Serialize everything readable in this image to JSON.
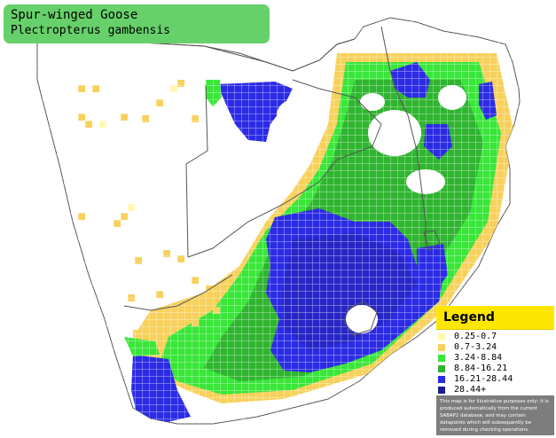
{
  "title": {
    "common_name": "Spur-winged Goose",
    "scientific_name": "Plectropterus gambensis"
  },
  "legend": {
    "heading": "Legend",
    "items": [
      {
        "label": "0.25-0.7",
        "color": "#fff8b0"
      },
      {
        "label": "0.7-3.24",
        "color": "#f7d15c"
      },
      {
        "label": "3.24-8.84",
        "color": "#39e639"
      },
      {
        "label": "8.84-16.21",
        "color": "#2fb52f"
      },
      {
        "label": "16.21-28.44",
        "color": "#2b2be6"
      },
      {
        "label": "28.44+",
        "color": "#1c1c8c"
      }
    ],
    "note": "This map is for illustrative purposes only; it is produced automatically from the current SABAP2 database, and may contain datapoints which will subsequently be removed during checking operations."
  },
  "map": {
    "region": "Southern Africa",
    "reporting_rate_classes": [
      "0.25-0.7",
      "0.7-3.24",
      "3.24-8.84",
      "8.84-16.21",
      "16.21-28.44",
      "28.44+"
    ],
    "palette": {
      "yellow": "#f7d15c",
      "light_yellow": "#fff8b0",
      "green": "#39e639",
      "dark_green": "#2fb52f",
      "blue": "#2b2be6",
      "navy": "#1c1c8c",
      "grid": "#ffffff",
      "border": "#555555"
    }
  }
}
